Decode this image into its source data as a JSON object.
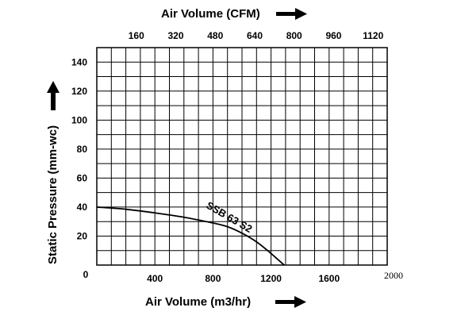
{
  "chart_data": {
    "type": "line",
    "title_top": "Air Volume (CFM)",
    "xlabel": "Air Volume (m3/hr)",
    "ylabel": "Static Pressure (mm-wc)",
    "xlim": [
      0,
      2000
    ],
    "ylim": [
      0,
      150
    ],
    "x_ticks": [
      "400",
      "800",
      "1200",
      "1600",
      "2000"
    ],
    "x_origin_label": "0",
    "top_ticks": [
      "160",
      "320",
      "480",
      "640",
      "800",
      "960",
      "1120"
    ],
    "y_ticks": [
      "20",
      "40",
      "60",
      "80",
      "100",
      "120",
      "140"
    ],
    "grid": true,
    "series": [
      {
        "name": "SSB 63 S2",
        "x": [
          0,
          200,
          400,
          600,
          800,
          900,
          1000,
          1100,
          1200,
          1290
        ],
        "y": [
          40,
          38.5,
          36,
          33,
          29,
          26.5,
          22,
          16,
          8,
          0
        ]
      }
    ]
  }
}
